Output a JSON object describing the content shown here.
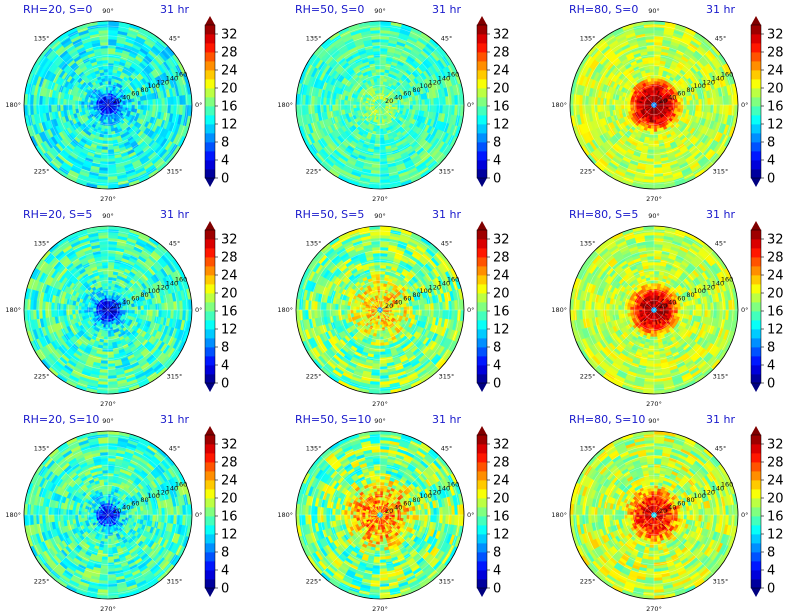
{
  "chart_data": {
    "type": "polar_filled_contour_grid",
    "time_label": "31 hr",
    "angle_tick_labels": [
      "0°",
      "45°",
      "90°",
      "135°",
      "180°",
      "225°",
      "270°",
      "315°"
    ],
    "radial_tick_labels": [
      "20",
      "40",
      "60",
      "80",
      "100",
      "120",
      "140",
      "160"
    ],
    "radial_range": [
      0,
      170
    ],
    "colorbar": {
      "colormap": "jet",
      "range": [
        0,
        34
      ],
      "ticks": [
        "0",
        "4",
        "8",
        "12",
        "16",
        "20",
        "24",
        "28",
        "32"
      ],
      "extend": "both"
    },
    "panels": [
      {
        "title": "RH=20, S=0",
        "rh": 20,
        "s": 0,
        "center_value": 2,
        "core_radius": 22,
        "ring_value": 14,
        "ring_radius": 0,
        "background_value": 14,
        "noise": 1.0
      },
      {
        "title": "RH=50, S=0",
        "rh": 50,
        "s": 0,
        "center_value": 16,
        "core_radius": 10,
        "ring_value": 15,
        "ring_radius": 0,
        "background_value": 15,
        "noise": 0.8
      },
      {
        "title": "RH=80, S=0",
        "rh": 80,
        "s": 0,
        "center_value": 6,
        "core_radius": 6,
        "ring_value": 34,
        "ring_radius": 55,
        "background_value": 19,
        "noise": 0.8
      },
      {
        "title": "RH=20, S=5",
        "rh": 20,
        "s": 5,
        "center_value": 1,
        "core_radius": 24,
        "ring_value": 14,
        "ring_radius": 0,
        "background_value": 15,
        "noise": 1.0
      },
      {
        "title": "RH=50, S=5",
        "rh": 50,
        "s": 5,
        "center_value": 10,
        "core_radius": 8,
        "ring_value": 22,
        "ring_radius": 70,
        "background_value": 17,
        "noise": 1.2
      },
      {
        "title": "RH=80, S=5",
        "rh": 80,
        "s": 5,
        "center_value": 8,
        "core_radius": 8,
        "ring_value": 33,
        "ring_radius": 50,
        "background_value": 19,
        "noise": 0.8
      },
      {
        "title": "RH=20, S=10",
        "rh": 20,
        "s": 10,
        "center_value": 3,
        "core_radius": 24,
        "ring_value": 14,
        "ring_radius": 0,
        "background_value": 15,
        "noise": 1.0
      },
      {
        "title": "RH=50, S=10",
        "rh": 50,
        "s": 10,
        "center_value": 12,
        "core_radius": 8,
        "ring_value": 25,
        "ring_radius": 75,
        "background_value": 17,
        "noise": 1.3
      },
      {
        "title": "RH=80, S=10",
        "rh": 80,
        "s": 10,
        "center_value": 10,
        "core_radius": 8,
        "ring_value": 30,
        "ring_radius": 55,
        "background_value": 19,
        "noise": 1.0
      }
    ]
  }
}
